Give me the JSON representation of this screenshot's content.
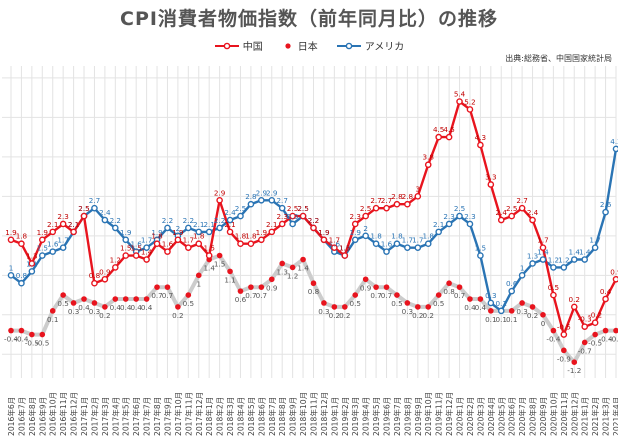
{
  "title": "CPI消費者物価指数（前年同月比）の推移",
  "source": "出典:総務省、中国国家統計局",
  "colors": {
    "china": "#e8141e",
    "japan": "#e8141e",
    "usa": "#2a74b4",
    "japan_line": "#cccccc",
    "grid": "#e3e3e3"
  },
  "chart_data": {
    "type": "line",
    "title": "CPI消費者物価指数（前年同月比）の推移",
    "xlabel": "",
    "ylabel": "",
    "grid": true,
    "legend_position": "top-center",
    "categories": [
      "2016年6月",
      "2016年7月",
      "2016年8月",
      "2016年9月",
      "2016年10月",
      "2016年11月",
      "2016年12月",
      "2017年1月",
      "2017年2月",
      "2017年3月",
      "2017年4月",
      "2017年5月",
      "2017年6月",
      "2017年7月",
      "2017年8月",
      "2017年9月",
      "2017年10月",
      "2017年11月",
      "2017年12月",
      "2018年1月",
      "2018年2月",
      "2018年3月",
      "2018年4月",
      "2018年5月",
      "2018年6月",
      "2018年7月",
      "2018年8月",
      "2018年9月",
      "2018年10月",
      "2018年11月",
      "2018年12月",
      "2019年1月",
      "2019年2月",
      "2019年3月",
      "2019年4月",
      "2019年5月",
      "2019年6月",
      "2019年7月",
      "2019年8月",
      "2019年9月",
      "2019年10月",
      "2019年11月",
      "2019年12月",
      "2020年1月",
      "2020年2月",
      "2020年3月",
      "2020年4月",
      "2020年5月",
      "2020年6月",
      "2020年7月",
      "2020年8月",
      "2020年9月",
      "2020年10月",
      "2020年11月",
      "2020年12月",
      "2021年1月",
      "2021年2月",
      "2021年3月",
      "2021年4月"
    ],
    "series": [
      {
        "name": "中国",
        "style": "red-line-dots",
        "labels": true,
        "values": [
          1.9,
          1.8,
          1.3,
          1.9,
          2.1,
          2.3,
          2.1,
          2.5,
          0.8,
          0.9,
          1.2,
          1.5,
          1.5,
          1.4,
          1.8,
          1.6,
          1.9,
          1.7,
          1.8,
          1.5,
          2.9,
          2.1,
          1.8,
          1.8,
          1.9,
          2.1,
          2.3,
          2.5,
          2.5,
          2.2,
          1.9,
          1.7,
          1.5,
          2.3,
          2.5,
          2.7,
          2.7,
          2.8,
          2.8,
          3.0,
          3.8,
          4.5,
          4.5,
          5.4,
          5.2,
          4.3,
          3.3,
          2.4,
          2.5,
          2.7,
          2.4,
          1.7,
          0.5,
          -0.5,
          0.2,
          -0.3,
          -0.2,
          0.4,
          0.9
        ]
      },
      {
        "name": "日本",
        "style": "red-dots-gray-line",
        "labels": true,
        "values": [
          -0.4,
          -0.4,
          -0.5,
          -0.5,
          0.1,
          0.5,
          0.3,
          0.4,
          0.3,
          0.2,
          0.4,
          0.4,
          0.4,
          0.4,
          0.7,
          0.7,
          0.2,
          0.5,
          1.0,
          1.4,
          1.5,
          1.1,
          0.6,
          0.7,
          0.7,
          0.9,
          1.3,
          1.2,
          1.4,
          0.8,
          0.3,
          0.2,
          0.2,
          0.5,
          0.9,
          0.7,
          0.7,
          0.5,
          0.3,
          0.2,
          0.2,
          0.5,
          0.8,
          0.7,
          0.4,
          0.4,
          0.1,
          0.1,
          0.1,
          0.3,
          0.2,
          0.0,
          -0.4,
          -0.9,
          -1.2,
          -0.7,
          -0.5,
          -0.4,
          -0.4
        ]
      },
      {
        "name": "アメリカ",
        "style": "blue-line-dots",
        "labels": true,
        "values": [
          1.0,
          0.8,
          1.1,
          1.5,
          1.6,
          1.7,
          2.1,
          2.5,
          2.7,
          2.4,
          2.2,
          1.9,
          1.6,
          1.7,
          1.9,
          2.2,
          2.0,
          2.2,
          2.1,
          2.1,
          2.2,
          2.4,
          2.5,
          2.8,
          2.9,
          2.9,
          2.7,
          2.3,
          2.5,
          2.2,
          1.9,
          1.6,
          1.5,
          1.9,
          2.0,
          1.8,
          1.6,
          1.8,
          1.7,
          1.7,
          1.8,
          2.1,
          2.3,
          2.5,
          2.3,
          1.5,
          0.3,
          0.1,
          0.6,
          1.0,
          1.3,
          1.4,
          1.2,
          1.2,
          1.4,
          1.4,
          1.7,
          2.6,
          4.2
        ]
      }
    ],
    "ylim": [
      -1.6,
      6.3
    ]
  },
  "legend": [
    {
      "name": "中国",
      "color": "#e8141e"
    },
    {
      "name": "日本",
      "color": "#e8141e"
    },
    {
      "name": "アメリカ",
      "color": "#2a74b4"
    }
  ]
}
